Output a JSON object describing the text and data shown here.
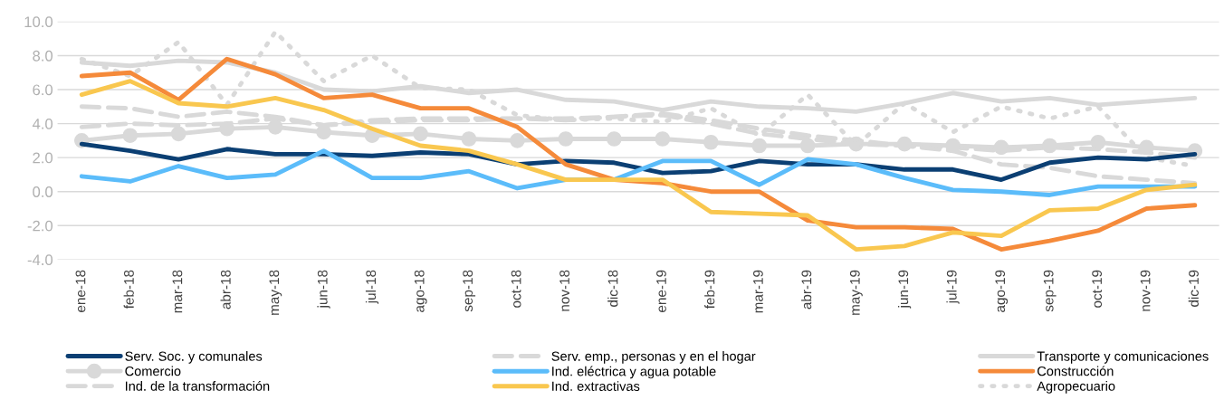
{
  "chart_data": {
    "type": "line",
    "categories": [
      "ene-18",
      "feb-18",
      "mar-18",
      "abr-18",
      "may-18",
      "jun-18",
      "jul-18",
      "ago-18",
      "sep-18",
      "oct-18",
      "nov-18",
      "dic-18",
      "ene-19",
      "feb-19",
      "mar-19",
      "abr-19",
      "may-19",
      "jun-19",
      "jul-19",
      "ago-19",
      "sep-19",
      "oct-19",
      "nov-19",
      "dic-19"
    ],
    "ylim": [
      -4,
      10
    ],
    "yticks": [
      {
        "value": -4,
        "label": "-4.0"
      },
      {
        "value": -2,
        "label": "-2.0"
      },
      {
        "value": 0,
        "label": "0.0"
      },
      {
        "value": 2,
        "label": "2.0"
      },
      {
        "value": 4,
        "label": "4.0"
      },
      {
        "value": 6,
        "label": "6.0"
      },
      {
        "value": 8,
        "label": "8.0"
      },
      {
        "value": 10,
        "label": "10.0"
      }
    ],
    "grid": "y",
    "legend": "bottom",
    "series": [
      {
        "name": "Serv. Soc. y comunales",
        "color": "#0b3f73",
        "line_style": "solid",
        "marker": "none",
        "values": [
          2.8,
          2.4,
          1.9,
          2.5,
          2.2,
          2.2,
          2.1,
          2.3,
          2.2,
          1.6,
          1.8,
          1.7,
          1.1,
          1.2,
          1.8,
          1.6,
          1.6,
          1.3,
          1.3,
          0.7,
          1.7,
          2.0,
          1.9,
          2.2
        ]
      },
      {
        "name": "Serv. emp., personas y en el hogar",
        "color": "#d9d9d9",
        "line_style": "dashed",
        "marker": "none",
        "values": [
          3.8,
          4.0,
          3.9,
          4.0,
          4.3,
          3.9,
          4.1,
          4.2,
          4.2,
          4.3,
          4.2,
          4.4,
          4.6,
          4.2,
          3.7,
          3.3,
          3.0,
          2.7,
          2.6,
          2.4,
          2.6,
          2.5,
          2.3,
          2.0
        ]
      },
      {
        "name": "Transporte y comunicaciones",
        "color": "#d9d9d9",
        "line_style": "solid",
        "marker": "none",
        "values": [
          7.6,
          7.4,
          7.7,
          7.6,
          7.0,
          6.0,
          5.9,
          6.2,
          5.8,
          6.0,
          5.4,
          5.3,
          4.8,
          5.3,
          5.0,
          4.9,
          4.7,
          5.2,
          5.8,
          5.3,
          5.5,
          5.1,
          5.3,
          5.5
        ]
      },
      {
        "name": "Comercio",
        "color": "#d9d9d9",
        "line_style": "solid",
        "marker": "circle",
        "values": [
          3.0,
          3.3,
          3.4,
          3.7,
          3.8,
          3.5,
          3.3,
          3.4,
          3.1,
          3.0,
          3.1,
          3.1,
          3.1,
          2.9,
          2.7,
          2.7,
          2.8,
          2.8,
          2.7,
          2.6,
          2.7,
          2.9,
          2.6,
          2.4
        ]
      },
      {
        "name": "Ind. eléctrica y agua potable",
        "color": "#5bbcfa",
        "line_style": "solid",
        "marker": "none",
        "values": [
          0.9,
          0.6,
          1.5,
          0.8,
          1.0,
          2.4,
          0.8,
          0.8,
          1.2,
          0.2,
          0.7,
          0.7,
          1.8,
          1.8,
          0.4,
          1.9,
          1.6,
          0.8,
          0.1,
          0.0,
          -0.2,
          0.3,
          0.3,
          0.3
        ]
      },
      {
        "name": "Construcción",
        "color": "#f58a3a",
        "line_style": "solid",
        "marker": "none",
        "values": [
          6.8,
          7.0,
          5.4,
          7.8,
          6.9,
          5.5,
          5.7,
          4.9,
          4.9,
          3.8,
          1.6,
          0.7,
          0.5,
          0.0,
          0.0,
          -1.7,
          -2.1,
          -2.1,
          -2.2,
          -3.4,
          -2.9,
          -2.3,
          -1.0,
          -0.8
        ]
      },
      {
        "name": "Ind. de la transformación",
        "color": "#d9d9d9",
        "line_style": "dashed",
        "marker": "none",
        "values": [
          5.0,
          4.9,
          4.4,
          4.7,
          4.4,
          3.9,
          4.2,
          4.3,
          4.3,
          4.3,
          4.3,
          4.4,
          4.5,
          4.0,
          3.4,
          3.1,
          2.8,
          2.7,
          2.4,
          1.6,
          1.4,
          0.9,
          0.7,
          0.5
        ]
      },
      {
        "name": "Ind. extractivas",
        "color": "#f9c74f",
        "line_style": "solid",
        "marker": "none",
        "values": [
          5.7,
          6.5,
          5.2,
          5.0,
          5.5,
          4.8,
          3.7,
          2.7,
          2.4,
          1.6,
          0.7,
          0.7,
          0.7,
          -1.2,
          -1.3,
          -1.4,
          -3.4,
          -3.2,
          -2.4,
          -2.6,
          -1.1,
          -1.0,
          0.1,
          0.4
        ]
      },
      {
        "name": "Agropecuario",
        "color": "#d9d9d9",
        "line_style": "dotted",
        "marker": "none",
        "values": [
          7.8,
          6.8,
          8.8,
          5.1,
          9.4,
          6.5,
          8.0,
          6.1,
          6.0,
          4.5,
          4.2,
          4.3,
          4.1,
          4.9,
          3.3,
          5.7,
          2.7,
          5.2,
          3.5,
          5.0,
          4.3,
          5.0,
          2.0,
          1.5
        ]
      }
    ]
  }
}
